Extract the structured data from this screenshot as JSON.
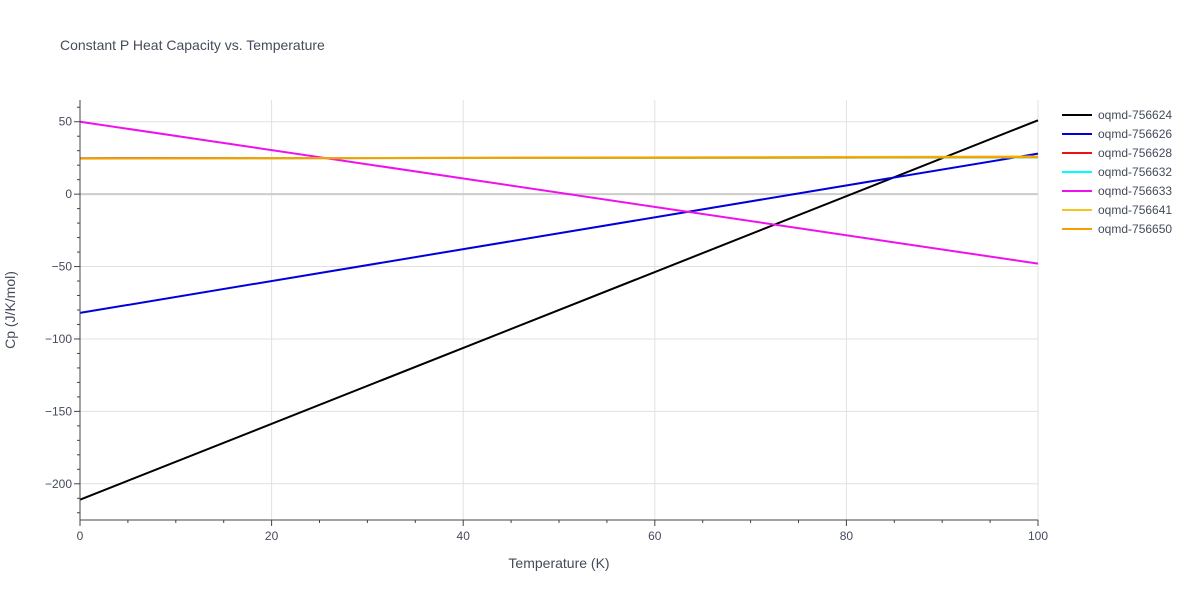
{
  "chart_data": {
    "type": "line",
    "title": "Constant P Heat Capacity vs. Temperature",
    "xlabel": "Temperature (K)",
    "ylabel": "Cp (J/K/mol)",
    "xlim": [
      0,
      100
    ],
    "ylim": [
      -225,
      65
    ],
    "x_ticks": [
      0,
      20,
      40,
      60,
      80,
      100
    ],
    "y_ticks": [
      -200,
      -150,
      -100,
      -50,
      0,
      50
    ],
    "y_tick_labels": [
      "−200",
      "−150",
      "−100",
      "−50",
      "0",
      "50"
    ],
    "grid": true,
    "legend_position": "top-right",
    "series": [
      {
        "name": "oqmd-756624",
        "color": "#000000",
        "x": [
          0,
          100
        ],
        "y": [
          -211,
          51
        ]
      },
      {
        "name": "oqmd-756626",
        "color": "#0000dd",
        "x": [
          0,
          100
        ],
        "y": [
          -82,
          28
        ]
      },
      {
        "name": "oqmd-756628",
        "color": "#ee1111",
        "x": [
          0,
          100
        ],
        "y": [
          24.8,
          25.4
        ]
      },
      {
        "name": "oqmd-756632",
        "color": "#00ffff",
        "x": [
          0,
          100
        ],
        "y": [
          24.7,
          25.3
        ]
      },
      {
        "name": "oqmd-756633",
        "color": "#ee11ee",
        "x": [
          0,
          100
        ],
        "y": [
          50,
          -48
        ]
      },
      {
        "name": "oqmd-756641",
        "color": "#f5c518",
        "x": [
          0,
          100
        ],
        "y": [
          24.5,
          26.0
        ]
      },
      {
        "name": "oqmd-756650",
        "color": "#f5a000",
        "x": [
          0,
          100
        ],
        "y": [
          24.6,
          25.5
        ]
      }
    ]
  }
}
